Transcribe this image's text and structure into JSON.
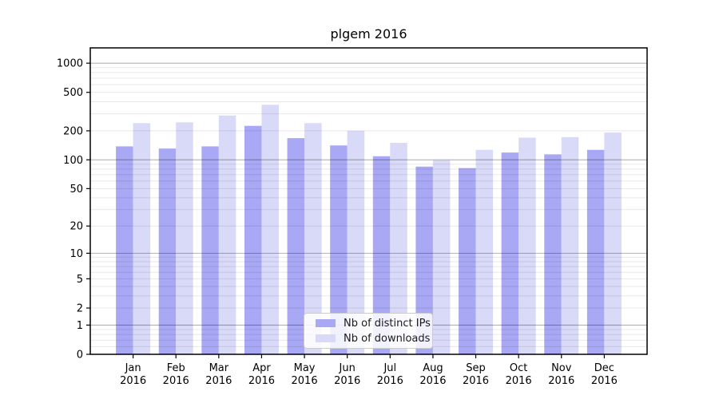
{
  "chart_data": {
    "type": "bar",
    "title": "plgem 2016",
    "categories": [
      "Jan 2016",
      "Feb 2016",
      "Mar 2016",
      "Apr 2016",
      "May 2016",
      "Jun 2016",
      "Jul 2016",
      "Aug 2016",
      "Sep 2016",
      "Oct 2016",
      "Nov 2016",
      "Dec 2016"
    ],
    "series": [
      {
        "name": "Nb of distinct IPs",
        "color": "#a8a8f4",
        "values": [
          138,
          131,
          138,
          225,
          168,
          141,
          109,
          85,
          82,
          119,
          114,
          127
        ]
      },
      {
        "name": "Nb of downloads",
        "color": "#d9d9f8",
        "values": [
          240,
          245,
          288,
          372,
          240,
          200,
          150,
          99,
          127,
          170,
          172,
          192
        ]
      }
    ],
    "xlabel": "",
    "ylabel": "",
    "yscale": "log1p",
    "ylim": [
      0,
      1438
    ],
    "yticks": [
      0,
      1,
      2,
      5,
      10,
      20,
      50,
      100,
      200,
      500,
      1000
    ],
    "grid_major": [
      1,
      10,
      100,
      1000
    ],
    "grid_minor": [
      0.2,
      0.4,
      0.6,
      0.8,
      2,
      3,
      4,
      5,
      6,
      7,
      8,
      9,
      20,
      30,
      40,
      50,
      60,
      70,
      80,
      90,
      200,
      300,
      400,
      500,
      600,
      700,
      800,
      900
    ],
    "grid": "on",
    "legend_position": "lower center"
  },
  "colors": {
    "grid_major": "#b2b2b2",
    "grid_minor": "#e8e8e8",
    "axis": "#000000",
    "text": "#000000",
    "background": "#ffffff"
  }
}
